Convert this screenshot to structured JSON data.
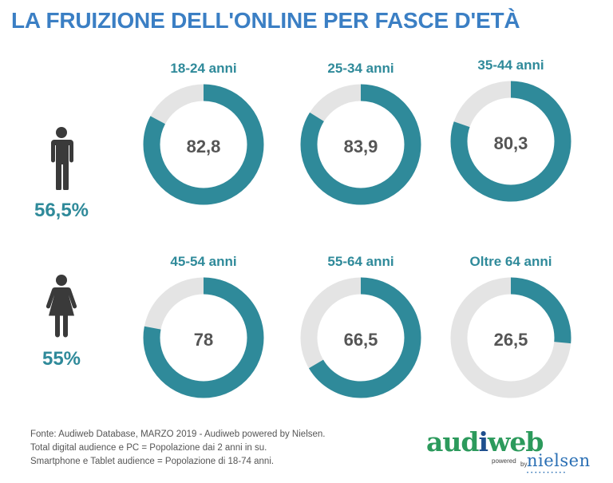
{
  "header": {
    "title": "LA FRUIZIONE DELL'ONLINE PER FASCE D'ETÀ"
  },
  "rows": {
    "male": {
      "icon": "man-icon",
      "percent": "56,5%"
    },
    "female": {
      "icon": "woman-icon",
      "percent": "55%"
    }
  },
  "chart_data": {
    "type": "pie",
    "style": "donut",
    "max": 100,
    "colors": {
      "filled": "#2f8a9a",
      "track": "#e4e4e4"
    },
    "categories": [
      "18-24 anni",
      "25-34 anni",
      "35-44 anni",
      "45-54 anni",
      "55-64 anni",
      "Oltre 64 anni"
    ],
    "values": [
      82.8,
      83.9,
      80.3,
      78,
      66.5,
      26.5
    ],
    "value_labels": [
      "82,8",
      "83,9",
      "80,3",
      "78",
      "66,5",
      "26,5"
    ]
  },
  "footer": {
    "lines": [
      "Fonte: Audiweb Database, MARZO 2019 - Audiweb powered by Nielsen.",
      "Total digital audience e PC = Popolazione dai 2 anni in su.",
      "Smartphone e Tablet audience = Popolazione di 18-74 anni."
    ]
  },
  "logo": {
    "main_prefix": "aud",
    "main_accent": "i",
    "main_suffix": "web",
    "powered": "powered",
    "by": "by",
    "nielsen": "nielsen"
  }
}
